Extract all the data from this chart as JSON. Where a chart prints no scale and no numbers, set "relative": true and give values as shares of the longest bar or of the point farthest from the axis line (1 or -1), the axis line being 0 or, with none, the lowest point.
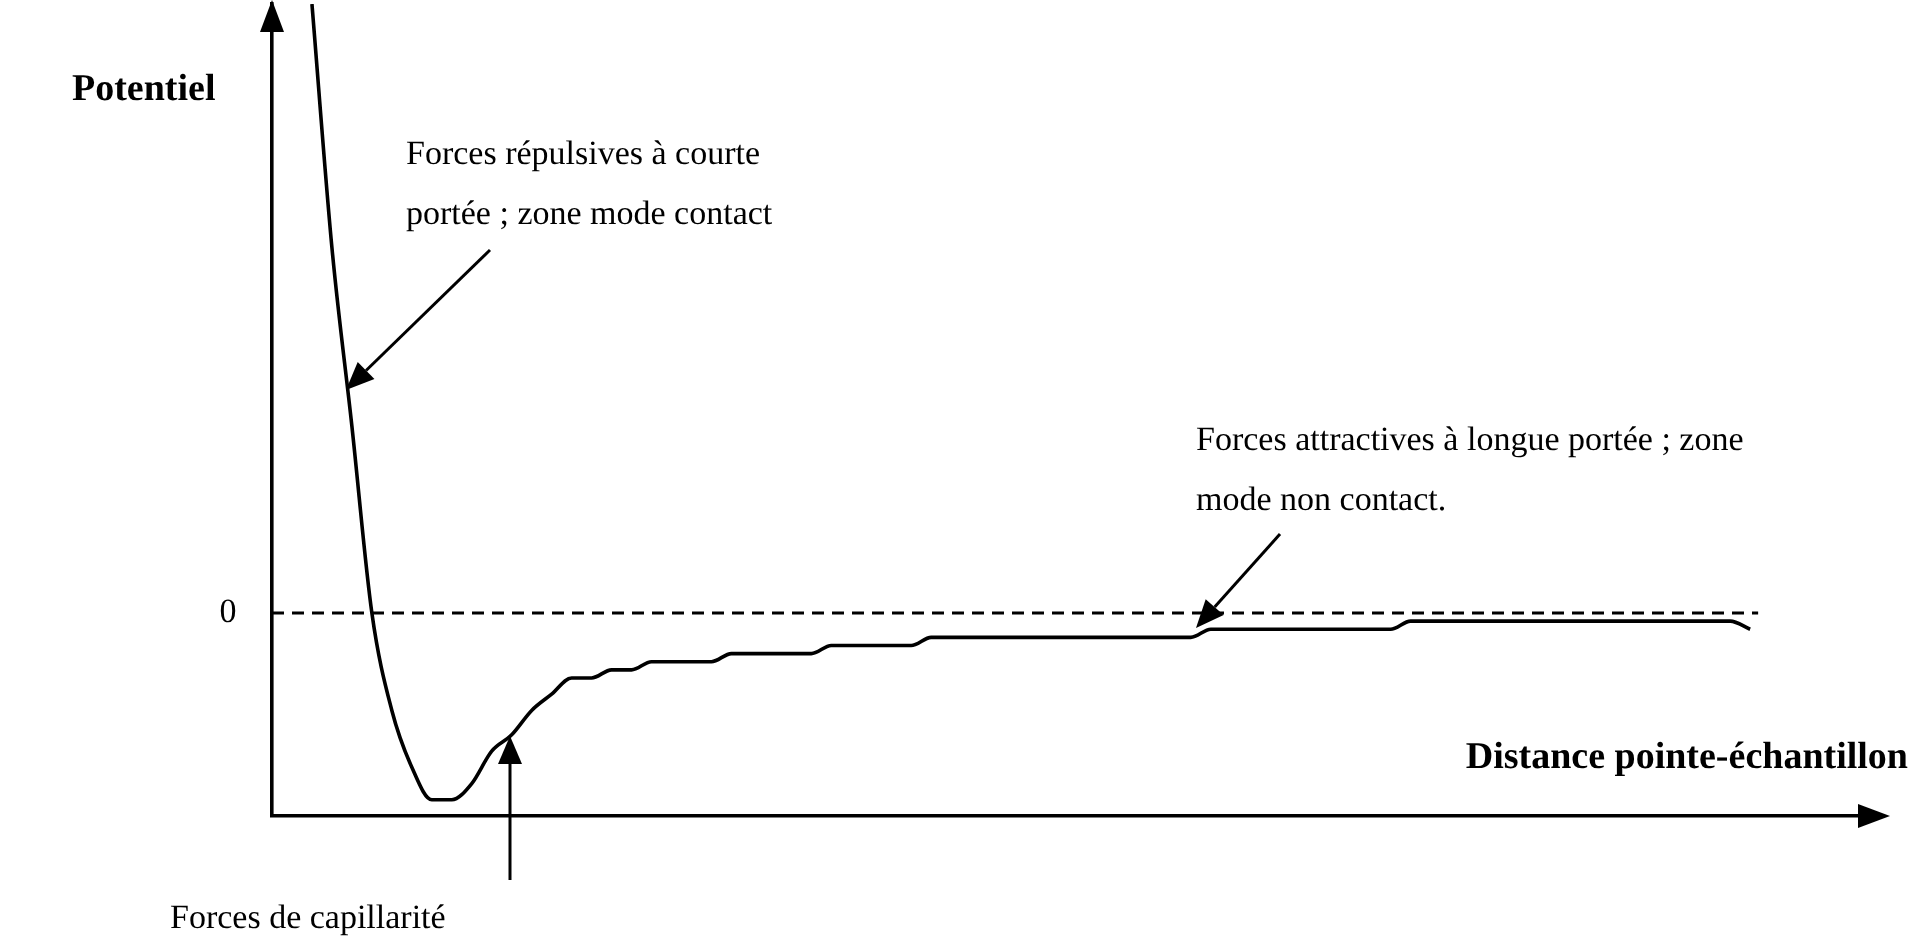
{
  "chart_data": {
    "type": "line",
    "relative": true,
    "xlabel": "Distance pointe-échantillon",
    "ylabel": "Potentiel",
    "categories": [
      null,
      null,
      null,
      null,
      null,
      null,
      null,
      null,
      null,
      null,
      null,
      null,
      null,
      null,
      null,
      null,
      null,
      null,
      null,
      null,
      null,
      null,
      null,
      null,
      null,
      null,
      null,
      null,
      null,
      null,
      null,
      null,
      null,
      null,
      null,
      null,
      null,
      null,
      null,
      null,
      null,
      null,
      null,
      null,
      null,
      null,
      null,
      null,
      null,
      null,
      null,
      null,
      null,
      null,
      null,
      null,
      null,
      null,
      null,
      null,
      null,
      null,
      null,
      null,
      null,
      null,
      null,
      null,
      null,
      null,
      null,
      null,
      null,
      null,
      null,
      null,
      null,
      null,
      null,
      null,
      null
    ],
    "series": [
      {
        "color": "#000000",
        "values": [
          null,
          null,
          1.0,
          0.7,
          0.48,
          0.25,
          0.13,
          0.06,
          0.02,
          0.02,
          0.04,
          0.08,
          0.1,
          0.13,
          0.15,
          0.17,
          0.17,
          0.18,
          0.18,
          0.19,
          0.19,
          0.19,
          0.19,
          0.2,
          0.2,
          0.2,
          0.2,
          0.2,
          0.21,
          0.21,
          0.21,
          0.21,
          0.21,
          0.22,
          0.22,
          0.22,
          0.22,
          0.22,
          0.22,
          0.22,
          0.22,
          0.22,
          0.22,
          0.22,
          0.22,
          0.22,
          0.22,
          0.23,
          0.23,
          0.23,
          0.23,
          0.23,
          0.23,
          0.23,
          0.23,
          0.23,
          0.23,
          0.24,
          0.24,
          0.24,
          0.24,
          0.24,
          0.24,
          0.24,
          0.24,
          0.24,
          0.24,
          0.24,
          0.24,
          0.24,
          0.24,
          0.24,
          0.24,
          0.24,
          0.23,
          null,
          null,
          null,
          null,
          null,
          null
        ]
      }
    ],
    "marker": "none",
    "line_style": "solid",
    "ref_lines": [
      {
        "axis": "y",
        "value": 0.25,
        "label": "0",
        "line_style": "dashed",
        "color": "#000000"
      }
    ],
    "annotations": [
      "Forces répulsives à courte portée ; zone mode contact",
      "Forces de capillarité",
      "Forces attractives à longue portée ; zone mode non contact."
    ]
  }
}
